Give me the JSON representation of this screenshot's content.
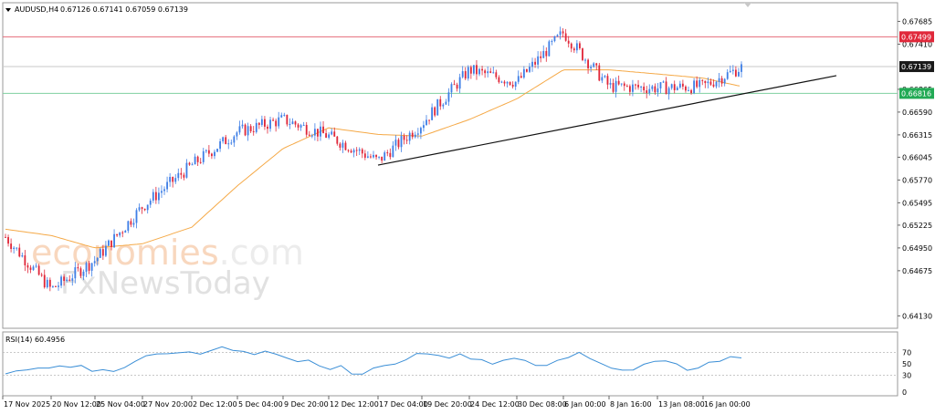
{
  "header": {
    "symbol": "AUDUSD,H4",
    "ohlc": "0.67126 0.67141 0.67059 0.67139"
  },
  "watermark": {
    "line1_a": "econo",
    "line1_b": "mies",
    "line1_c": ".com",
    "line2_a": "Fx",
    "line2_b": "NewsToday"
  },
  "colors": {
    "bull": "#3f7fe6",
    "bear": "#e0283a",
    "ma": "#f5a947",
    "resistance": "#e56b7a",
    "support": "#7fd1a0",
    "trendline": "#111111",
    "rsi": "#3a8ed6",
    "label_dark": "#1a1a1a",
    "label_red": "#e0283a",
    "label_green": "#22aa55"
  },
  "chart_data": [
    {
      "type": "candlestick",
      "title": "AUDUSD,H4",
      "ylim": [
        0.6398,
        0.6791
      ],
      "y_ticks": [
        0.67685,
        0.6741,
        0.67139,
        0.66865,
        0.6659,
        0.66315,
        0.66045,
        0.6577,
        0.65495,
        0.65225,
        0.6495,
        0.64675,
        0.6413
      ],
      "y_tick_labels": [
        "0.67685",
        "0.67410",
        "0.67139",
        "0.66865",
        "0.66590",
        "0.66315",
        "0.66045",
        "0.65770",
        "0.65495",
        "0.65225",
        "0.64950",
        "0.64675",
        "0.64130"
      ],
      "x_labels": [
        "17 Nov 2025",
        "20 Nov 12:00",
        "25 Nov 04:00",
        "27 Nov 20:00",
        "2 Dec 12:00",
        "5 Dec 04:00",
        "9 Dec 20:00",
        "12 Dec 12:00",
        "17 Dec 04:00",
        "19 Dec 20:00",
        "24 Dec 12:00",
        "30 Dec 08:00",
        "6 Jan 00:00",
        "8 Jan 16:00",
        "13 Jan 08:00",
        "16 Jan 00:00"
      ],
      "price_levels": [
        {
          "name": "resistance",
          "value": 0.67499,
          "label": "0.67499",
          "style": "red"
        },
        {
          "name": "current",
          "value": 0.67139,
          "label": "0.67139",
          "style": "dark"
        },
        {
          "name": "support",
          "value": 0.66816,
          "label": "0.66816",
          "style": "green"
        }
      ],
      "trendline": {
        "start": [
          "17 Dec 04:00",
          0.6595
        ],
        "end": [
          "19 Jan",
          0.6703
        ]
      },
      "close_path": [
        [
          "17 Nov 2025",
          0.6512
        ],
        [
          "20 Nov 12:00",
          0.6445
        ],
        [
          "25 Nov 04:00",
          0.648
        ],
        [
          "27 Nov 20:00",
          0.6545
        ],
        [
          "2 Dec 12:00",
          0.6595
        ],
        [
          "5 Dec 04:00",
          0.6635
        ],
        [
          "9 Dec 20:00",
          0.665
        ],
        [
          "12 Dec 12:00",
          0.663
        ],
        [
          "17 Dec 04:00",
          0.66
        ],
        [
          "19 Dec 20:00",
          0.6645
        ],
        [
          "24 Dec 12:00",
          0.671
        ],
        [
          "30 Dec 08:00",
          0.6695
        ],
        [
          "6 Jan 00:00",
          0.6755
        ],
        [
          "8 Jan 16:00",
          0.669
        ],
        [
          "13 Jan 08:00",
          0.6688
        ],
        [
          "16 Jan 00:00",
          0.669
        ],
        [
          "16 Jan 16:00",
          0.6713
        ]
      ],
      "moving_average_path": [
        [
          "17 Nov 2025",
          0.6518
        ],
        [
          "20 Nov 12:00",
          0.651
        ],
        [
          "25 Nov 04:00",
          0.6495
        ],
        [
          "27 Nov 20:00",
          0.65
        ],
        [
          "2 Dec 12:00",
          0.652
        ],
        [
          "5 Dec 04:00",
          0.657
        ],
        [
          "9 Dec 20:00",
          0.6615
        ],
        [
          "12 Dec 12:00",
          0.664
        ],
        [
          "17 Dec 04:00",
          0.6632
        ],
        [
          "19 Dec 20:00",
          0.663
        ],
        [
          "24 Dec 12:00",
          0.665
        ],
        [
          "30 Dec 08:00",
          0.6675
        ],
        [
          "6 Jan 00:00",
          0.671
        ],
        [
          "8 Jan 16:00",
          0.671
        ],
        [
          "13 Jan 08:00",
          0.6705
        ],
        [
          "16 Jan 00:00",
          0.67
        ],
        [
          "16 Jan 16:00",
          0.669
        ]
      ]
    },
    {
      "type": "line",
      "title": "RSI(14) 60.4956",
      "ylim": [
        0,
        100
      ],
      "y_ticks": [
        70,
        50,
        30,
        0
      ],
      "y_tick_labels": [
        "70",
        "50",
        "30",
        "0"
      ],
      "levels": [
        70,
        30
      ],
      "values": [
        30,
        38,
        42,
        45,
        40,
        44,
        42,
        48,
        35,
        40,
        38,
        45,
        55,
        62,
        67,
        70,
        68,
        72,
        70,
        75,
        78,
        74,
        70,
        66,
        70,
        65,
        58,
        52,
        55,
        48,
        40,
        44,
        35,
        32,
        40,
        46,
        52,
        60,
        68,
        66,
        64,
        62,
        65,
        60,
        55,
        52,
        58,
        62,
        56,
        50,
        48,
        55,
        64,
        68,
        62,
        50,
        44,
        36,
        40,
        48,
        52,
        55,
        48,
        40,
        42,
        50,
        55,
        60,
        60
      ]
    }
  ]
}
